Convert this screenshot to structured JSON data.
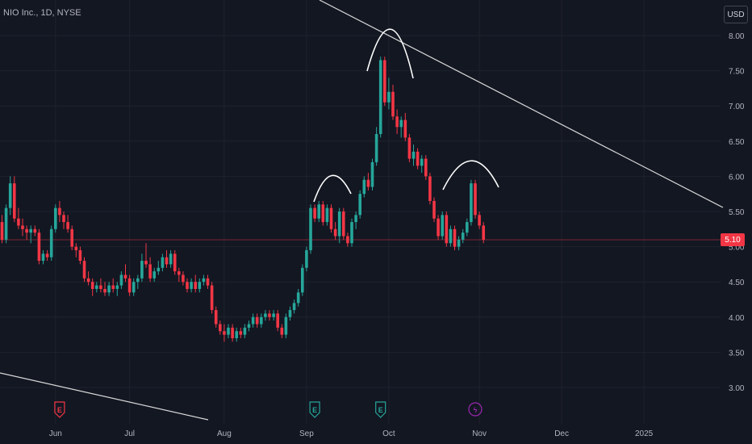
{
  "header": {
    "symbol_title": "NIO Inc., 1D, NYSE",
    "currency": "USD"
  },
  "last_price_label": "5.10",
  "colors": {
    "background": "#131722",
    "up": "#26a69a",
    "down": "#f23645",
    "grid": "#1e222d",
    "axis_text": "#b2b5be",
    "annotation": "#ffffff",
    "earnings_up": "#26a69a",
    "earnings_down": "#f23645",
    "dividend": "#9c27b0"
  },
  "chart_data": {
    "type": "candlestick",
    "ylim": [
      2.8,
      8.2
    ],
    "y_ticks": [
      "8.00",
      "7.50",
      "7.00",
      "6.50",
      "6.00",
      "5.50",
      "5.00",
      "4.50",
      "4.00",
      "3.50",
      "3.00"
    ],
    "x_ticks": [
      {
        "label": "Jun",
        "bar": 13
      },
      {
        "label": "Jul",
        "bar": 31
      },
      {
        "label": "Aug",
        "bar": 54
      },
      {
        "label": "Sep",
        "bar": 74
      },
      {
        "label": "Oct",
        "bar": 94
      },
      {
        "label": "Nov",
        "bar": 116
      },
      {
        "label": "Dec",
        "bar": 136
      },
      {
        "label": "2025",
        "bar": 156
      }
    ],
    "last_price": 5.1,
    "grid": true,
    "candles": [
      [
        5.35,
        5.45,
        5.05,
        5.1
      ],
      [
        5.1,
        5.6,
        5.05,
        5.55
      ],
      [
        5.55,
        6.0,
        5.45,
        5.9
      ],
      [
        5.9,
        6.0,
        5.35,
        5.4
      ],
      [
        5.4,
        5.55,
        5.25,
        5.3
      ],
      [
        5.3,
        5.4,
        5.15,
        5.25
      ],
      [
        5.25,
        5.3,
        5.1,
        5.2
      ],
      [
        5.2,
        5.3,
        5.05,
        5.25
      ],
      [
        5.25,
        5.3,
        5.15,
        5.2
      ],
      [
        5.2,
        5.25,
        4.75,
        4.8
      ],
      [
        4.8,
        4.95,
        4.75,
        4.9
      ],
      [
        4.9,
        4.95,
        4.8,
        4.85
      ],
      [
        4.85,
        5.3,
        4.8,
        5.25
      ],
      [
        5.25,
        5.6,
        5.2,
        5.55
      ],
      [
        5.55,
        5.65,
        5.35,
        5.45
      ],
      [
        5.45,
        5.5,
        5.25,
        5.35
      ],
      [
        5.35,
        5.45,
        5.2,
        5.25
      ],
      [
        5.25,
        5.3,
        4.95,
        5.0
      ],
      [
        5.0,
        5.05,
        4.85,
        4.95
      ],
      [
        4.95,
        5.0,
        4.75,
        4.8
      ],
      [
        4.8,
        4.85,
        4.5,
        4.55
      ],
      [
        4.55,
        4.65,
        4.45,
        4.5
      ],
      [
        4.5,
        4.55,
        4.3,
        4.4
      ],
      [
        4.4,
        4.5,
        4.35,
        4.45
      ],
      [
        4.45,
        4.55,
        4.35,
        4.4
      ],
      [
        4.4,
        4.5,
        4.3,
        4.35
      ],
      [
        4.35,
        4.5,
        4.3,
        4.45
      ],
      [
        4.45,
        4.55,
        4.35,
        4.4
      ],
      [
        4.4,
        4.5,
        4.3,
        4.45
      ],
      [
        4.45,
        4.65,
        4.4,
        4.6
      ],
      [
        4.6,
        4.75,
        4.5,
        4.55
      ],
      [
        4.55,
        4.6,
        4.3,
        4.35
      ],
      [
        4.35,
        4.55,
        4.3,
        4.5
      ],
      [
        4.5,
        4.6,
        4.4,
        4.55
      ],
      [
        4.55,
        4.9,
        4.5,
        4.8
      ],
      [
        4.8,
        5.05,
        4.7,
        4.75
      ],
      [
        4.75,
        4.85,
        4.5,
        4.55
      ],
      [
        4.55,
        4.7,
        4.5,
        4.65
      ],
      [
        4.65,
        4.8,
        4.6,
        4.7
      ],
      [
        4.7,
        4.9,
        4.65,
        4.85
      ],
      [
        4.85,
        4.95,
        4.7,
        4.75
      ],
      [
        4.75,
        4.95,
        4.7,
        4.9
      ],
      [
        4.9,
        4.95,
        4.6,
        4.65
      ],
      [
        4.65,
        4.7,
        4.5,
        4.6
      ],
      [
        4.6,
        4.65,
        4.45,
        4.5
      ],
      [
        4.5,
        4.55,
        4.35,
        4.4
      ],
      [
        4.4,
        4.55,
        4.35,
        4.5
      ],
      [
        4.5,
        4.6,
        4.35,
        4.4
      ],
      [
        4.4,
        4.55,
        4.35,
        4.5
      ],
      [
        4.5,
        4.6,
        4.45,
        4.55
      ],
      [
        4.55,
        4.6,
        4.4,
        4.45
      ],
      [
        4.45,
        4.5,
        4.05,
        4.1
      ],
      [
        4.1,
        4.15,
        3.85,
        3.9
      ],
      [
        3.9,
        3.95,
        3.75,
        3.8
      ],
      [
        3.8,
        3.9,
        3.65,
        3.75
      ],
      [
        3.75,
        3.9,
        3.7,
        3.85
      ],
      [
        3.85,
        3.9,
        3.65,
        3.7
      ],
      [
        3.7,
        3.85,
        3.65,
        3.8
      ],
      [
        3.8,
        3.85,
        3.7,
        3.75
      ],
      [
        3.75,
        3.9,
        3.7,
        3.85
      ],
      [
        3.85,
        3.95,
        3.8,
        3.9
      ],
      [
        3.9,
        4.05,
        3.85,
        4.0
      ],
      [
        4.0,
        4.05,
        3.85,
        3.9
      ],
      [
        3.9,
        4.05,
        3.85,
        4.0
      ],
      [
        4.0,
        4.1,
        3.95,
        4.05
      ],
      [
        4.05,
        4.1,
        3.95,
        4.0
      ],
      [
        4.0,
        4.1,
        3.95,
        4.05
      ],
      [
        4.05,
        4.1,
        3.8,
        3.85
      ],
      [
        3.85,
        3.9,
        3.7,
        3.75
      ],
      [
        3.75,
        4.05,
        3.7,
        4.0
      ],
      [
        4.0,
        4.15,
        3.95,
        4.1
      ],
      [
        4.1,
        4.25,
        4.05,
        4.2
      ],
      [
        4.2,
        4.4,
        4.15,
        4.35
      ],
      [
        4.35,
        4.75,
        4.3,
        4.7
      ],
      [
        4.7,
        5.0,
        4.65,
        4.95
      ],
      [
        4.95,
        5.6,
        4.9,
        5.55
      ],
      [
        5.55,
        5.6,
        5.35,
        5.4
      ],
      [
        5.4,
        5.65,
        5.35,
        5.6
      ],
      [
        5.6,
        5.65,
        5.3,
        5.35
      ],
      [
        5.35,
        5.6,
        5.3,
        5.55
      ],
      [
        5.55,
        5.6,
        5.2,
        5.25
      ],
      [
        5.25,
        5.35,
        5.1,
        5.15
      ],
      [
        5.15,
        5.55,
        5.05,
        5.5
      ],
      [
        5.5,
        5.55,
        5.1,
        5.15
      ],
      [
        5.15,
        5.2,
        5.0,
        5.05
      ],
      [
        5.05,
        5.4,
        5.0,
        5.35
      ],
      [
        5.35,
        5.5,
        5.25,
        5.45
      ],
      [
        5.45,
        5.8,
        5.4,
        5.75
      ],
      [
        5.75,
        6.0,
        5.7,
        5.95
      ],
      [
        5.95,
        6.05,
        5.8,
        5.85
      ],
      [
        5.85,
        6.25,
        5.8,
        6.2
      ],
      [
        6.2,
        6.7,
        6.15,
        6.6
      ],
      [
        6.6,
        7.7,
        6.55,
        7.65
      ],
      [
        7.65,
        7.7,
        7.0,
        7.05
      ],
      [
        7.05,
        7.4,
        6.95,
        7.2
      ],
      [
        7.2,
        7.3,
        6.8,
        6.85
      ],
      [
        6.85,
        6.95,
        6.6,
        6.7
      ],
      [
        6.7,
        6.85,
        6.55,
        6.8
      ],
      [
        6.8,
        6.9,
        6.5,
        6.55
      ],
      [
        6.55,
        6.6,
        6.2,
        6.25
      ],
      [
        6.25,
        6.45,
        6.15,
        6.35
      ],
      [
        6.35,
        6.4,
        6.1,
        6.15
      ],
      [
        6.15,
        6.3,
        6.05,
        6.25
      ],
      [
        6.25,
        6.3,
        5.95,
        6.0
      ],
      [
        6.0,
        6.05,
        5.6,
        5.65
      ],
      [
        5.65,
        5.7,
        5.35,
        5.4
      ],
      [
        5.4,
        5.45,
        5.1,
        5.15
      ],
      [
        5.15,
        5.5,
        5.1,
        5.45
      ],
      [
        5.45,
        5.5,
        5.0,
        5.05
      ],
      [
        5.05,
        5.3,
        5.0,
        5.25
      ],
      [
        5.25,
        5.3,
        4.95,
        5.0
      ],
      [
        5.0,
        5.15,
        4.95,
        5.1
      ],
      [
        5.1,
        5.25,
        5.05,
        5.2
      ],
      [
        5.2,
        5.4,
        5.15,
        5.35
      ],
      [
        5.35,
        5.95,
        5.3,
        5.9
      ],
      [
        5.9,
        5.95,
        5.4,
        5.45
      ],
      [
        5.45,
        5.5,
        5.25,
        5.3
      ],
      [
        5.3,
        5.35,
        5.05,
        5.1
      ]
    ]
  },
  "event_markers": [
    {
      "type": "E",
      "bar": 14,
      "color": "#f23645"
    },
    {
      "type": "E",
      "bar": 76,
      "color": "#26a69a"
    },
    {
      "type": "E",
      "bar": 92,
      "color": "#26a69a"
    },
    {
      "type": "ϟ",
      "bar": 115,
      "color": "#9c27b0"
    }
  ]
}
